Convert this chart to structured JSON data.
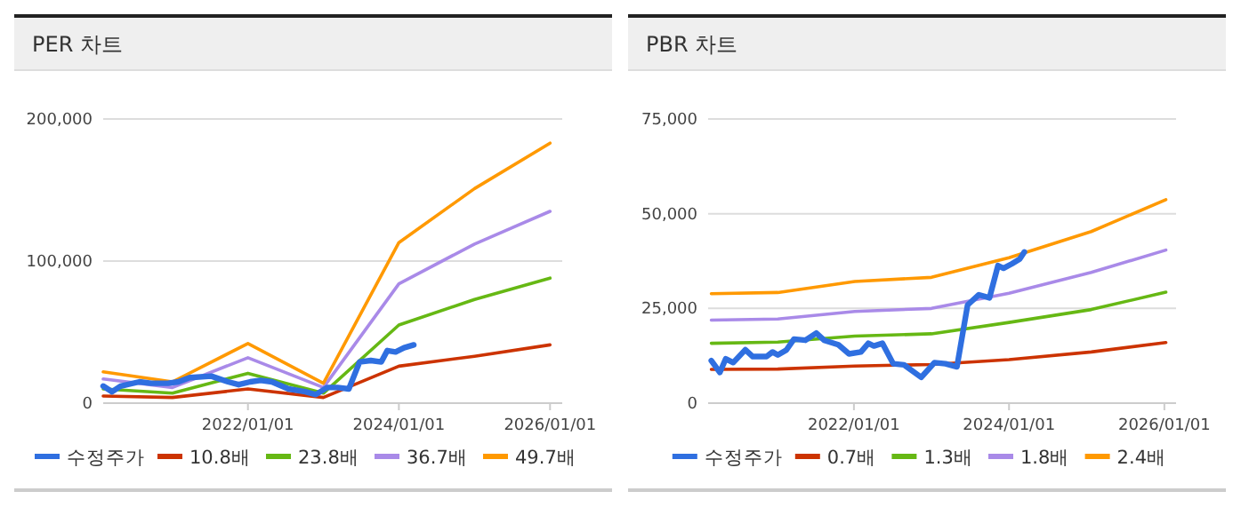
{
  "chart_data": [
    {
      "type": "line",
      "title": "PER 차트",
      "xlim": [
        "2020-02-01",
        "2026-03-01"
      ],
      "xticks": [
        {
          "value": "2022-01-01",
          "label": "2022/01/01"
        },
        {
          "value": "2024-01-01",
          "label": "2024/01/01"
        },
        {
          "value": "2026-01-01",
          "label": "2026/01/01"
        }
      ],
      "ylim": [
        0,
        200000
      ],
      "yticks": [
        {
          "value": 0,
          "label": "0"
        },
        {
          "value": 100000,
          "label": "100,000"
        },
        {
          "value": 200000,
          "label": "200,000"
        }
      ],
      "grid": "y",
      "legend": "bottom",
      "series": [
        {
          "name": "수정주가",
          "color": "#2f6fe0",
          "x": [
            "2020-02-01",
            "2020-03-15",
            "2020-04-25",
            "2020-07-25",
            "2020-09-20",
            "2020-12-10",
            "2021-01-30",
            "2021-03-25",
            "2021-07-08",
            "2021-09-27",
            "2021-11-17",
            "2022-01-12",
            "2022-03-03",
            "2022-04-27",
            "2022-07-16",
            "2022-10-05",
            "2022-11-25",
            "2023-01-19",
            "2023-03-10",
            "2023-05-04",
            "2023-06-25",
            "2023-08-18",
            "2023-10-08",
            "2023-11-06",
            "2023-12-16",
            "2024-01-26",
            "2024-03-13"
          ],
          "values": [
            12000,
            8000,
            12000,
            15000,
            14000,
            14000,
            15000,
            18000,
            19000,
            15000,
            13000,
            15000,
            16000,
            15000,
            10000,
            8000,
            6000,
            11000,
            11000,
            10000,
            29000,
            30000,
            29000,
            37000,
            36000,
            39000,
            41000
          ]
        },
        {
          "name": "10.8배",
          "color": "#cc3300",
          "x": [
            "2020-02-01",
            "2021-01-01",
            "2022-01-01",
            "2023-01-01",
            "2024-01-01",
            "2025-01-01",
            "2026-01-01"
          ],
          "values": [
            5000,
            4000,
            10000,
            4000,
            26000,
            33000,
            41000
          ]
        },
        {
          "name": "23.8배",
          "color": "#66b814",
          "x": [
            "2020-02-01",
            "2021-01-01",
            "2022-01-01",
            "2023-01-01",
            "2024-01-01",
            "2025-01-01",
            "2026-01-01"
          ],
          "values": [
            10000,
            7000,
            21000,
            7000,
            55000,
            73000,
            88000
          ]
        },
        {
          "name": "36.7배",
          "color": "#a98ae8",
          "x": [
            "2020-02-01",
            "2021-01-01",
            "2022-01-01",
            "2023-01-01",
            "2024-01-01",
            "2025-01-01",
            "2026-01-01"
          ],
          "values": [
            17000,
            11000,
            32000,
            11000,
            84000,
            112000,
            135000
          ]
        },
        {
          "name": "49.7배",
          "color": "#ff9900",
          "x": [
            "2020-02-01",
            "2021-01-01",
            "2022-01-01",
            "2023-01-01",
            "2024-01-01",
            "2025-01-01",
            "2026-01-01"
          ],
          "values": [
            22000,
            15000,
            42000,
            14000,
            113000,
            151000,
            183000
          ]
        }
      ]
    },
    {
      "type": "line",
      "title": "PBR 차트",
      "xlim": [
        "2020-02-15",
        "2026-02-25"
      ],
      "xticks": [
        {
          "value": "2022-01-01",
          "label": "2022/01/01"
        },
        {
          "value": "2024-01-01",
          "label": "2024/01/01"
        },
        {
          "value": "2026-01-01",
          "label": "2026/01/01"
        }
      ],
      "ylim": [
        0,
        75000
      ],
      "yticks": [
        {
          "value": 0,
          "label": "0"
        },
        {
          "value": 25000,
          "label": "25,000"
        },
        {
          "value": 50000,
          "label": "50,000"
        },
        {
          "value": 75000,
          "label": "75,000"
        }
      ],
      "grid": "y",
      "legend": "bottom",
      "series": [
        {
          "name": "수정주가",
          "color": "#2f6fe0",
          "x": [
            "2020-03-01",
            "2020-04-10",
            "2020-05-08",
            "2020-06-12",
            "2020-08-08",
            "2020-09-12",
            "2020-11-16",
            "2020-12-14",
            "2021-01-08",
            "2021-02-17",
            "2021-03-25",
            "2021-05-18",
            "2021-07-08",
            "2021-08-14",
            "2021-10-20",
            "2021-12-09",
            "2022-02-03",
            "2022-03-10",
            "2022-04-05",
            "2022-05-15",
            "2022-07-05",
            "2022-08-25",
            "2022-11-14",
            "2023-01-15",
            "2023-03-08",
            "2023-05-01",
            "2023-06-20",
            "2023-08-12",
            "2023-10-01",
            "2023-11-10",
            "2023-12-06",
            "2024-01-15",
            "2024-02-20",
            "2024-03-13"
          ],
          "values": [
            11200,
            8100,
            11700,
            10700,
            14100,
            12300,
            12300,
            13500,
            12700,
            14000,
            16900,
            16600,
            18500,
            16600,
            15400,
            13000,
            13500,
            15800,
            15100,
            15800,
            10400,
            10100,
            6800,
            10700,
            10400,
            9600,
            25900,
            28600,
            27800,
            36300,
            35600,
            36800,
            38000,
            39900
          ]
        },
        {
          "name": "0.7배",
          "color": "#cc3300",
          "x": [
            "2020-03-01",
            "2021-01-08",
            "2022-01-05",
            "2023-01-01",
            "2024-01-01",
            "2025-01-22",
            "2026-01-08"
          ],
          "values": [
            8900,
            9000,
            9800,
            10200,
            11500,
            13500,
            16000
          ]
        },
        {
          "name": "1.3배",
          "color": "#66b814",
          "x": [
            "2020-03-01",
            "2021-01-08",
            "2022-01-05",
            "2023-01-01",
            "2024-01-01",
            "2025-01-22",
            "2026-01-08"
          ],
          "values": [
            15800,
            16100,
            17700,
            18300,
            21300,
            24700,
            29300
          ]
        },
        {
          "name": "1.8배",
          "color": "#a98ae8",
          "x": [
            "2020-03-01",
            "2021-01-08",
            "2022-01-05",
            "2023-01-01",
            "2024-01-01",
            "2025-01-22",
            "2026-01-08"
          ],
          "values": [
            21900,
            22200,
            24200,
            25000,
            29000,
            34500,
            40400
          ]
        },
        {
          "name": "2.4배",
          "color": "#ff9900",
          "x": [
            "2020-03-01",
            "2021-01-08",
            "2022-01-05",
            "2023-01-01",
            "2024-01-01",
            "2025-01-22",
            "2026-01-08"
          ],
          "values": [
            28900,
            29200,
            32100,
            33200,
            38400,
            45300,
            53700
          ]
        }
      ]
    }
  ]
}
